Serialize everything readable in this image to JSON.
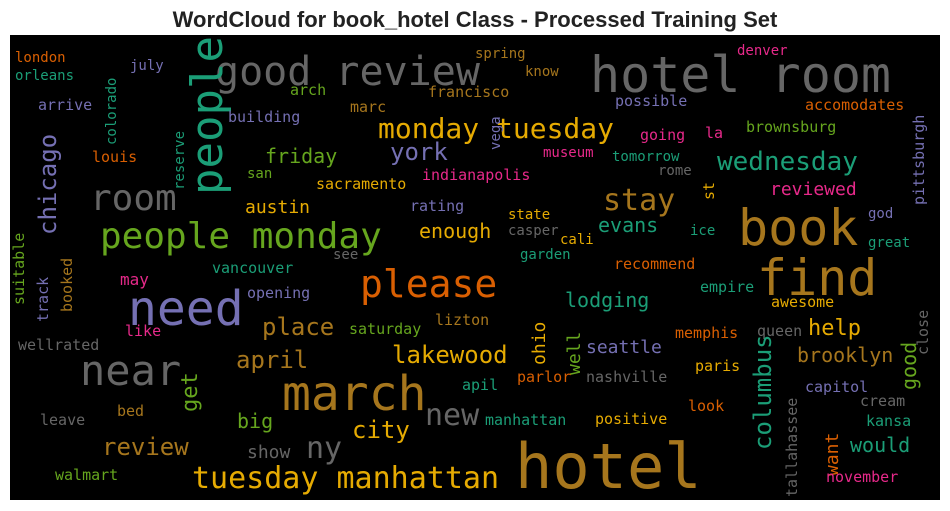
{
  "chart_data": {
    "type": "wordcloud",
    "title": "WordCloud for book_hotel Class - Processed Training Set",
    "words": [
      {
        "text": "hotel room",
        "color": "#666666"
      },
      {
        "text": "good review",
        "color": "#666666"
      },
      {
        "text": "people",
        "color": "#1b9e77"
      },
      {
        "text": "london",
        "color": "#d95f02"
      },
      {
        "text": "orleans",
        "color": "#1b9e77"
      },
      {
        "text": "july",
        "color": "#7570b3"
      },
      {
        "text": "colorado",
        "color": "#1b9e77"
      },
      {
        "text": "arrive",
        "color": "#7570b3"
      },
      {
        "text": "arch",
        "color": "#66a61e"
      },
      {
        "text": "spring",
        "color": "#a6761d"
      },
      {
        "text": "know",
        "color": "#a6761d"
      },
      {
        "text": "denver",
        "color": "#e7298a"
      },
      {
        "text": "francisco",
        "color": "#a6761d"
      },
      {
        "text": "marc",
        "color": "#a6761d"
      },
      {
        "text": "building",
        "color": "#7570b3"
      },
      {
        "text": "reserve",
        "color": "#1b9e77"
      },
      {
        "text": "possible",
        "color": "#7570b3"
      },
      {
        "text": "accomodates",
        "color": "#d95f02"
      },
      {
        "text": "monday tuesday",
        "color": "#e6ab02"
      },
      {
        "text": "vega",
        "color": "#7570b3"
      },
      {
        "text": "going",
        "color": "#e7298a"
      },
      {
        "text": "la",
        "color": "#e7298a"
      },
      {
        "text": "brownsburg",
        "color": "#66a61e"
      },
      {
        "text": "pittsburgh",
        "color": "#7570b3"
      },
      {
        "text": "chicago",
        "color": "#7570b3"
      },
      {
        "text": "louis",
        "color": "#d95f02"
      },
      {
        "text": "friday",
        "color": "#66a61e"
      },
      {
        "text": "york",
        "color": "#7570b3"
      },
      {
        "text": "museum",
        "color": "#e7298a"
      },
      {
        "text": "tomorrow",
        "color": "#1b9e77"
      },
      {
        "text": "wednesday",
        "color": "#1b9e77"
      },
      {
        "text": "room",
        "color": "#666666"
      },
      {
        "text": "san",
        "color": "#66a61e"
      },
      {
        "text": "sacramento",
        "color": "#e6ab02"
      },
      {
        "text": "indianapolis",
        "color": "#e7298a"
      },
      {
        "text": "rome",
        "color": "#666666"
      },
      {
        "text": "st",
        "color": "#e6ab02"
      },
      {
        "text": "reviewed",
        "color": "#e7298a"
      },
      {
        "text": "stay",
        "color": "#a6761d"
      },
      {
        "text": "book",
        "color": "#a6761d"
      },
      {
        "text": "austin",
        "color": "#e6ab02"
      },
      {
        "text": "rating",
        "color": "#7570b3"
      },
      {
        "text": "people monday",
        "color": "#66a61e"
      },
      {
        "text": "state",
        "color": "#e6ab02"
      },
      {
        "text": "god",
        "color": "#7570b3"
      },
      {
        "text": "casper",
        "color": "#666666"
      },
      {
        "text": "cali",
        "color": "#e6ab02"
      },
      {
        "text": "evans",
        "color": "#1b9e77"
      },
      {
        "text": "ice",
        "color": "#1b9e77"
      },
      {
        "text": "great",
        "color": "#1b9e77"
      },
      {
        "text": "enough",
        "color": "#e6ab02"
      },
      {
        "text": "suitable",
        "color": "#66a61e"
      },
      {
        "text": "booked",
        "color": "#a6761d"
      },
      {
        "text": "track",
        "color": "#7570b3"
      },
      {
        "text": "see",
        "color": "#666666"
      },
      {
        "text": "garden",
        "color": "#1b9e77"
      },
      {
        "text": "vancouver",
        "color": "#1b9e77"
      },
      {
        "text": "please",
        "color": "#d95f02"
      },
      {
        "text": "recommend",
        "color": "#d95f02"
      },
      {
        "text": "find",
        "color": "#a6761d"
      },
      {
        "text": "may",
        "color": "#e7298a"
      },
      {
        "text": "need",
        "color": "#7570b3"
      },
      {
        "text": "opening",
        "color": "#7570b3"
      },
      {
        "text": "empire",
        "color": "#1b9e77"
      },
      {
        "text": "awesome",
        "color": "#e6ab02"
      },
      {
        "text": "lodging",
        "color": "#1b9e77"
      },
      {
        "text": "place",
        "color": "#a6761d"
      },
      {
        "text": "saturday",
        "color": "#66a61e"
      },
      {
        "text": "lizton",
        "color": "#a6761d"
      },
      {
        "text": "ohio",
        "color": "#e6ab02"
      },
      {
        "text": "well",
        "color": "#66a61e"
      },
      {
        "text": "memphis",
        "color": "#d95f02"
      },
      {
        "text": "queen",
        "color": "#666666"
      },
      {
        "text": "help",
        "color": "#e6ab02"
      },
      {
        "text": "close",
        "color": "#666666"
      },
      {
        "text": "like",
        "color": "#e7298a"
      },
      {
        "text": "wellrated",
        "color": "#666666"
      },
      {
        "text": "near",
        "color": "#666666"
      },
      {
        "text": "seattle",
        "color": "#7570b3"
      },
      {
        "text": "good",
        "color": "#66a61e"
      },
      {
        "text": "columbus",
        "color": "#1b9e77"
      },
      {
        "text": "april",
        "color": "#a6761d"
      },
      {
        "text": "march",
        "color": "#a6761d"
      },
      {
        "text": "lakewood",
        "color": "#e6ab02"
      },
      {
        "text": "brooklyn",
        "color": "#a6761d"
      },
      {
        "text": "get",
        "color": "#66a61e"
      },
      {
        "text": "parlor",
        "color": "#d95f02"
      },
      {
        "text": "nashville",
        "color": "#666666"
      },
      {
        "text": "paris",
        "color": "#e6ab02"
      },
      {
        "text": "apil",
        "color": "#1b9e77"
      },
      {
        "text": "capitol",
        "color": "#7570b3"
      },
      {
        "text": "tallahassee",
        "color": "#666666"
      },
      {
        "text": "cream",
        "color": "#666666"
      },
      {
        "text": "leave",
        "color": "#666666"
      },
      {
        "text": "bed",
        "color": "#a6761d"
      },
      {
        "text": "new",
        "color": "#666666"
      },
      {
        "text": "manhattan",
        "color": "#1b9e77"
      },
      {
        "text": "positive",
        "color": "#e6ab02"
      },
      {
        "text": "look",
        "color": "#d95f02"
      },
      {
        "text": "kansa",
        "color": "#1b9e77"
      },
      {
        "text": "big",
        "color": "#66a61e"
      },
      {
        "text": "city",
        "color": "#e6ab02"
      },
      {
        "text": "want",
        "color": "#d95f02"
      },
      {
        "text": "review",
        "color": "#a6761d"
      },
      {
        "text": "show",
        "color": "#666666"
      },
      {
        "text": "ny",
        "color": "#666666"
      },
      {
        "text": "hotel",
        "color": "#a6761d"
      },
      {
        "text": "would",
        "color": "#1b9e77"
      },
      {
        "text": "tuesday manhattan",
        "color": "#e6ab02"
      },
      {
        "text": "walmart",
        "color": "#66a61e"
      },
      {
        "text": "november",
        "color": "#e7298a"
      }
    ]
  }
}
